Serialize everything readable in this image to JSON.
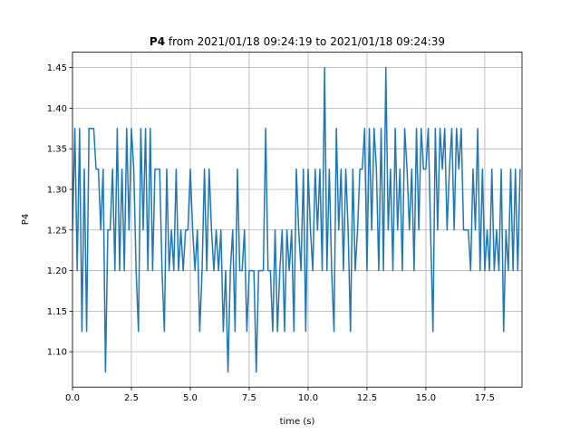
{
  "chart_data": {
    "type": "line",
    "title_bold": "P4",
    "title": "from 2021/01/18 09:24:19 to 2021/01/18 09:24:39",
    "xlabel": "time (s)",
    "ylabel": "P4",
    "color": "#1f77b4",
    "grid": true,
    "xlim": [
      0,
      19.08
    ],
    "ylim": [
      1.0564,
      1.469
    ],
    "xticks": [
      {
        "value": 0,
        "label": "0.0"
      },
      2.5,
      {
        "value": 5,
        "label": "5.0"
      },
      7.5,
      {
        "value": 10,
        "label": "10.0"
      },
      12.5,
      {
        "value": 15,
        "label": "15.0"
      },
      17.5
    ],
    "yticks": [
      {
        "value": 1.1,
        "label": "1.10"
      },
      1.15,
      {
        "value": 1.2,
        "label": "1.20"
      },
      1.25,
      {
        "value": 1.3,
        "label": "1.30"
      },
      1.35,
      {
        "value": 1.4,
        "label": "1.40"
      },
      1.45
    ],
    "x": [
      0,
      0.1,
      0.2,
      0.3,
      0.4,
      0.5,
      0.6,
      0.7,
      0.8,
      0.9,
      1,
      1.1,
      1.2,
      1.3,
      1.4,
      1.5,
      1.6,
      1.7,
      1.8,
      1.9,
      2,
      2.1,
      2.2,
      2.3,
      2.4,
      2.5,
      2.6,
      2.7,
      2.8,
      2.9,
      3,
      3.1,
      3.2,
      3.3,
      3.4,
      3.5,
      3.6,
      3.7,
      3.8,
      3.9,
      4,
      4.1,
      4.2,
      4.3,
      4.4,
      4.5,
      4.6,
      4.7,
      4.8,
      4.9,
      5,
      5.1,
      5.2,
      5.3,
      5.4,
      5.5,
      5.6,
      5.7,
      5.8,
      5.9,
      6,
      6.1,
      6.2,
      6.3,
      6.4,
      6.5,
      6.6,
      6.7,
      6.8,
      6.9,
      7,
      7.1,
      7.2,
      7.3,
      7.4,
      7.5,
      7.6,
      7.7,
      7.8,
      7.9,
      8,
      8.1,
      8.2,
      8.3,
      8.4,
      8.5,
      8.6,
      8.7,
      8.8,
      8.9,
      9,
      9.1,
      9.2,
      9.3,
      9.4,
      9.5,
      9.6,
      9.7,
      9.8,
      9.9,
      10,
      10.1,
      10.2,
      10.3,
      10.4,
      10.5,
      10.6,
      10.7,
      10.8,
      10.9,
      11,
      11.1,
      11.2,
      11.3,
      11.4,
      11.5,
      11.6,
      11.7,
      11.8,
      11.9,
      12,
      12.1,
      12.2,
      12.3,
      12.4,
      12.5,
      12.6,
      12.7,
      12.8,
      12.9,
      13,
      13.1,
      13.2,
      13.3,
      13.4,
      13.5,
      13.6,
      13.7,
      13.8,
      13.9,
      14,
      14.1,
      14.2,
      14.3,
      14.4,
      14.5,
      14.6,
      14.7,
      14.8,
      14.9,
      15,
      15.1,
      15.2,
      15.3,
      15.4,
      15.5,
      15.6,
      15.7,
      15.8,
      15.9,
      16,
      16.1,
      16.2,
      16.3,
      16.4,
      16.5,
      16.6,
      16.7,
      16.8,
      16.9,
      17,
      17.1,
      17.2,
      17.3,
      17.4,
      17.5,
      17.6,
      17.7,
      17.8,
      17.9,
      18,
      18.1,
      18.2,
      18.3,
      18.4,
      18.5,
      18.6,
      18.7,
      18.8,
      18.9,
      19
    ],
    "values": [
      1.25,
      1.375,
      1.2,
      1.375,
      1.125,
      1.325,
      1.125,
      1.375,
      1.375,
      1.375,
      1.325,
      1.325,
      1.25,
      1.325,
      1.075,
      1.25,
      1.25,
      1.325,
      1.2,
      1.375,
      1.2,
      1.325,
      1.2,
      1.375,
      1.25,
      1.375,
      1.325,
      1.2,
      1.125,
      1.375,
      1.25,
      1.375,
      1.2,
      1.375,
      1.2,
      1.325,
      1.325,
      1.325,
      1.2,
      1.125,
      1.325,
      1.2,
      1.25,
      1.2,
      1.325,
      1.2,
      1.25,
      1.2,
      1.25,
      1.25,
      1.325,
      1.25,
      1.2,
      1.25,
      1.125,
      1.2,
      1.325,
      1.2,
      1.325,
      1.25,
      1.2,
      1.25,
      1.2,
      1.25,
      1.125,
      1.2,
      1.075,
      1.2,
      1.25,
      1.125,
      1.325,
      1.2,
      1.2,
      1.25,
      1.125,
      1.2,
      1.2,
      1.2,
      1.075,
      1.2,
      1.2,
      1.2,
      1.375,
      1.2,
      1.2,
      1.125,
      1.25,
      1.125,
      1.2,
      1.25,
      1.125,
      1.25,
      1.2,
      1.25,
      1.125,
      1.325,
      1.25,
      1.2,
      1.325,
      1.125,
      1.325,
      1.25,
      1.2,
      1.325,
      1.25,
      1.325,
      1.2,
      1.45,
      1.2,
      1.325,
      1.2,
      1.125,
      1.375,
      1.25,
      1.325,
      1.2,
      1.325,
      1.25,
      1.125,
      1.325,
      1.2,
      1.25,
      1.325,
      1.325,
      1.375,
      1.2,
      1.375,
      1.25,
      1.375,
      1.325,
      1.2,
      1.375,
      1.2,
      1.45,
      1.25,
      1.325,
      1.2,
      1.375,
      1.25,
      1.325,
      1.2,
      1.375,
      1.325,
      1.25,
      1.325,
      1.2,
      1.375,
      1.25,
      1.375,
      1.325,
      1.325,
      1.375,
      1.25,
      1.125,
      1.375,
      1.25,
      1.375,
      1.325,
      1.375,
      1.25,
      1.325,
      1.375,
      1.25,
      1.375,
      1.325,
      1.375,
      1.25,
      1.25,
      1.25,
      1.2,
      1.325,
      1.25,
      1.375,
      1.2,
      1.325,
      1.2,
      1.25,
      1.2,
      1.325,
      1.2,
      1.25,
      1.2,
      1.325,
      1.125,
      1.25,
      1.2,
      1.325,
      1.2,
      1.325,
      1.2,
      1.325
    ]
  }
}
